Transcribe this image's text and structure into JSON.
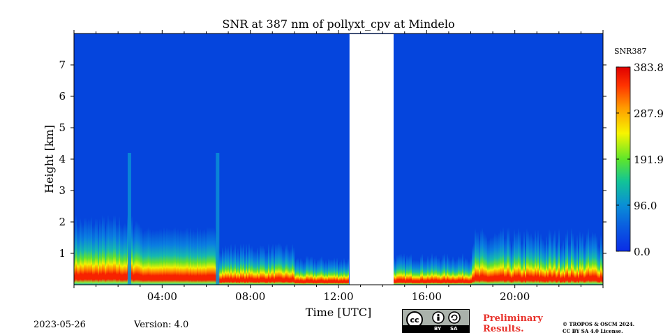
{
  "chart_data": {
    "type": "heatmap",
    "title": "SNR at 387 nm of pollyxt_cpv at Mindelo",
    "xlabel": "Time [UTC]",
    "ylabel": "Height [km]",
    "xlim": [
      0,
      24
    ],
    "ylim": [
      0,
      8
    ],
    "x_ticks": [
      {
        "value": 4,
        "label": "04:00"
      },
      {
        "value": 8,
        "label": "08:00"
      },
      {
        "value": 12,
        "label": "12:00"
      },
      {
        "value": 16,
        "label": "16:00"
      },
      {
        "value": 20,
        "label": "20:00"
      }
    ],
    "y_ticks": [
      {
        "value": 1,
        "label": "1"
      },
      {
        "value": 2,
        "label": "2"
      },
      {
        "value": 3,
        "label": "3"
      },
      {
        "value": 4,
        "label": "4"
      },
      {
        "value": 5,
        "label": "5"
      },
      {
        "value": 6,
        "label": "6"
      },
      {
        "value": 7,
        "label": "7"
      }
    ],
    "data_gap": [
      12.5,
      14.5
    ],
    "colorbar": {
      "label": "SNR387",
      "min": 0.0,
      "max": 383.8,
      "ticks": [
        {
          "value": 0.0,
          "label": "0.0"
        },
        {
          "value": 96.0,
          "label": "96.0"
        },
        {
          "value": 191.9,
          "label": "191.9"
        },
        {
          "value": 287.9,
          "label": "287.9"
        },
        {
          "value": 383.8,
          "label": "383.8"
        }
      ],
      "colors": [
        "#0a2ce6",
        "#0a8fd6",
        "#12c496",
        "#5ee62b",
        "#f7f500",
        "#ff9a00",
        "#ff3300",
        "#e00000"
      ]
    },
    "profile_height_km": [
      0.05,
      0.12,
      0.25,
      0.45,
      0.65,
      0.85,
      1.1,
      1.4,
      1.8,
      2.3,
      3.0,
      4.0,
      5.5,
      8.0
    ],
    "profile_snr_morning": [
      96,
      180,
      370,
      380,
      300,
      220,
      190,
      120,
      80,
      55,
      30,
      20,
      12,
      5
    ],
    "profile_snr_evening": [
      60,
      170,
      340,
      330,
      240,
      160,
      120,
      70,
      45,
      30,
      18,
      12,
      8,
      4
    ]
  },
  "footer": {
    "date": "2023-05-26",
    "version": "Version: 4.0",
    "preliminary_line1": "Preliminary",
    "preliminary_line2": "Results.",
    "copyright_line1": "© TROPOS & OSCM 2024.",
    "copyright_line2": "CC BY SA 4.0 License.",
    "cc_by": "BY",
    "cc_sa": "SA",
    "preliminary_color": "#e8312a"
  }
}
